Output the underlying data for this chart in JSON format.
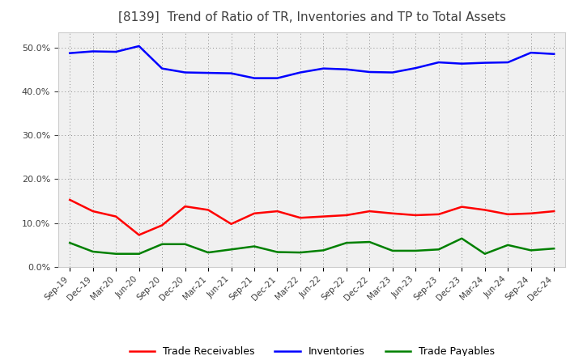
{
  "title": "[8139]  Trend of Ratio of TR, Inventories and TP to Total Assets",
  "x_labels": [
    "Sep-19",
    "Dec-19",
    "Mar-20",
    "Jun-20",
    "Sep-20",
    "Dec-20",
    "Mar-21",
    "Jun-21",
    "Sep-21",
    "Dec-21",
    "Mar-22",
    "Jun-22",
    "Sep-22",
    "Dec-22",
    "Mar-23",
    "Jun-23",
    "Sep-23",
    "Dec-23",
    "Mar-24",
    "Jun-24",
    "Sep-24",
    "Dec-24"
  ],
  "trade_receivables": [
    0.153,
    0.127,
    0.115,
    0.073,
    0.095,
    0.138,
    0.13,
    0.098,
    0.122,
    0.127,
    0.112,
    0.115,
    0.118,
    0.127,
    0.122,
    0.118,
    0.12,
    0.137,
    0.13,
    0.12,
    0.122,
    0.127
  ],
  "inventories": [
    0.487,
    0.491,
    0.49,
    0.503,
    0.452,
    0.443,
    0.442,
    0.441,
    0.43,
    0.43,
    0.443,
    0.452,
    0.45,
    0.444,
    0.443,
    0.453,
    0.466,
    0.463,
    0.465,
    0.466,
    0.488,
    0.485
  ],
  "trade_payables": [
    0.055,
    0.035,
    0.03,
    0.03,
    0.052,
    0.052,
    0.033,
    0.04,
    0.047,
    0.034,
    0.033,
    0.038,
    0.055,
    0.057,
    0.037,
    0.037,
    0.04,
    0.065,
    0.03,
    0.05,
    0.038,
    0.042
  ],
  "tr_color": "#ff0000",
  "inv_color": "#0000ff",
  "tp_color": "#008000",
  "ylim": [
    0.0,
    0.535
  ],
  "yticks": [
    0.0,
    0.1,
    0.2,
    0.3,
    0.4,
    0.5
  ],
  "bg_color": "#ffffff",
  "plot_bg_color": "#f0f0f0",
  "grid_color": "#888888",
  "title_color": "#404040",
  "tick_color": "#404040",
  "legend_labels": [
    "Trade Receivables",
    "Inventories",
    "Trade Payables"
  ]
}
